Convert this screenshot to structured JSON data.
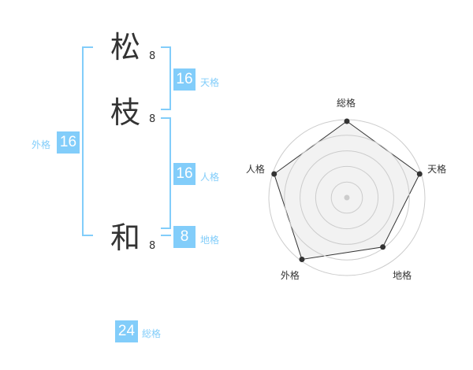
{
  "name": [
    {
      "char": "松",
      "strokes": "8"
    },
    {
      "char": "枝",
      "strokes": "8"
    },
    {
      "char": "和",
      "strokes": "8"
    }
  ],
  "kaku": {
    "gaikaku": {
      "label": "外格",
      "value": "16"
    },
    "tenkaku": {
      "label": "天格",
      "value": "16"
    },
    "jinkaku": {
      "label": "人格",
      "value": "16"
    },
    "chikaku": {
      "label": "地格",
      "value": "8"
    },
    "soukaku": {
      "label": "総格",
      "value": "24"
    }
  },
  "chart_data": {
    "type": "radar",
    "axes": [
      "総格",
      "天格",
      "地格",
      "外格",
      "人格"
    ],
    "values": [
      5,
      5,
      4,
      5,
      5
    ],
    "range": [
      0,
      5
    ],
    "rings": 5,
    "colors": {
      "fill": "#f0f0f0",
      "line": "#333333",
      "ring": "#cccccc",
      "accent": "#82cdfa"
    }
  }
}
